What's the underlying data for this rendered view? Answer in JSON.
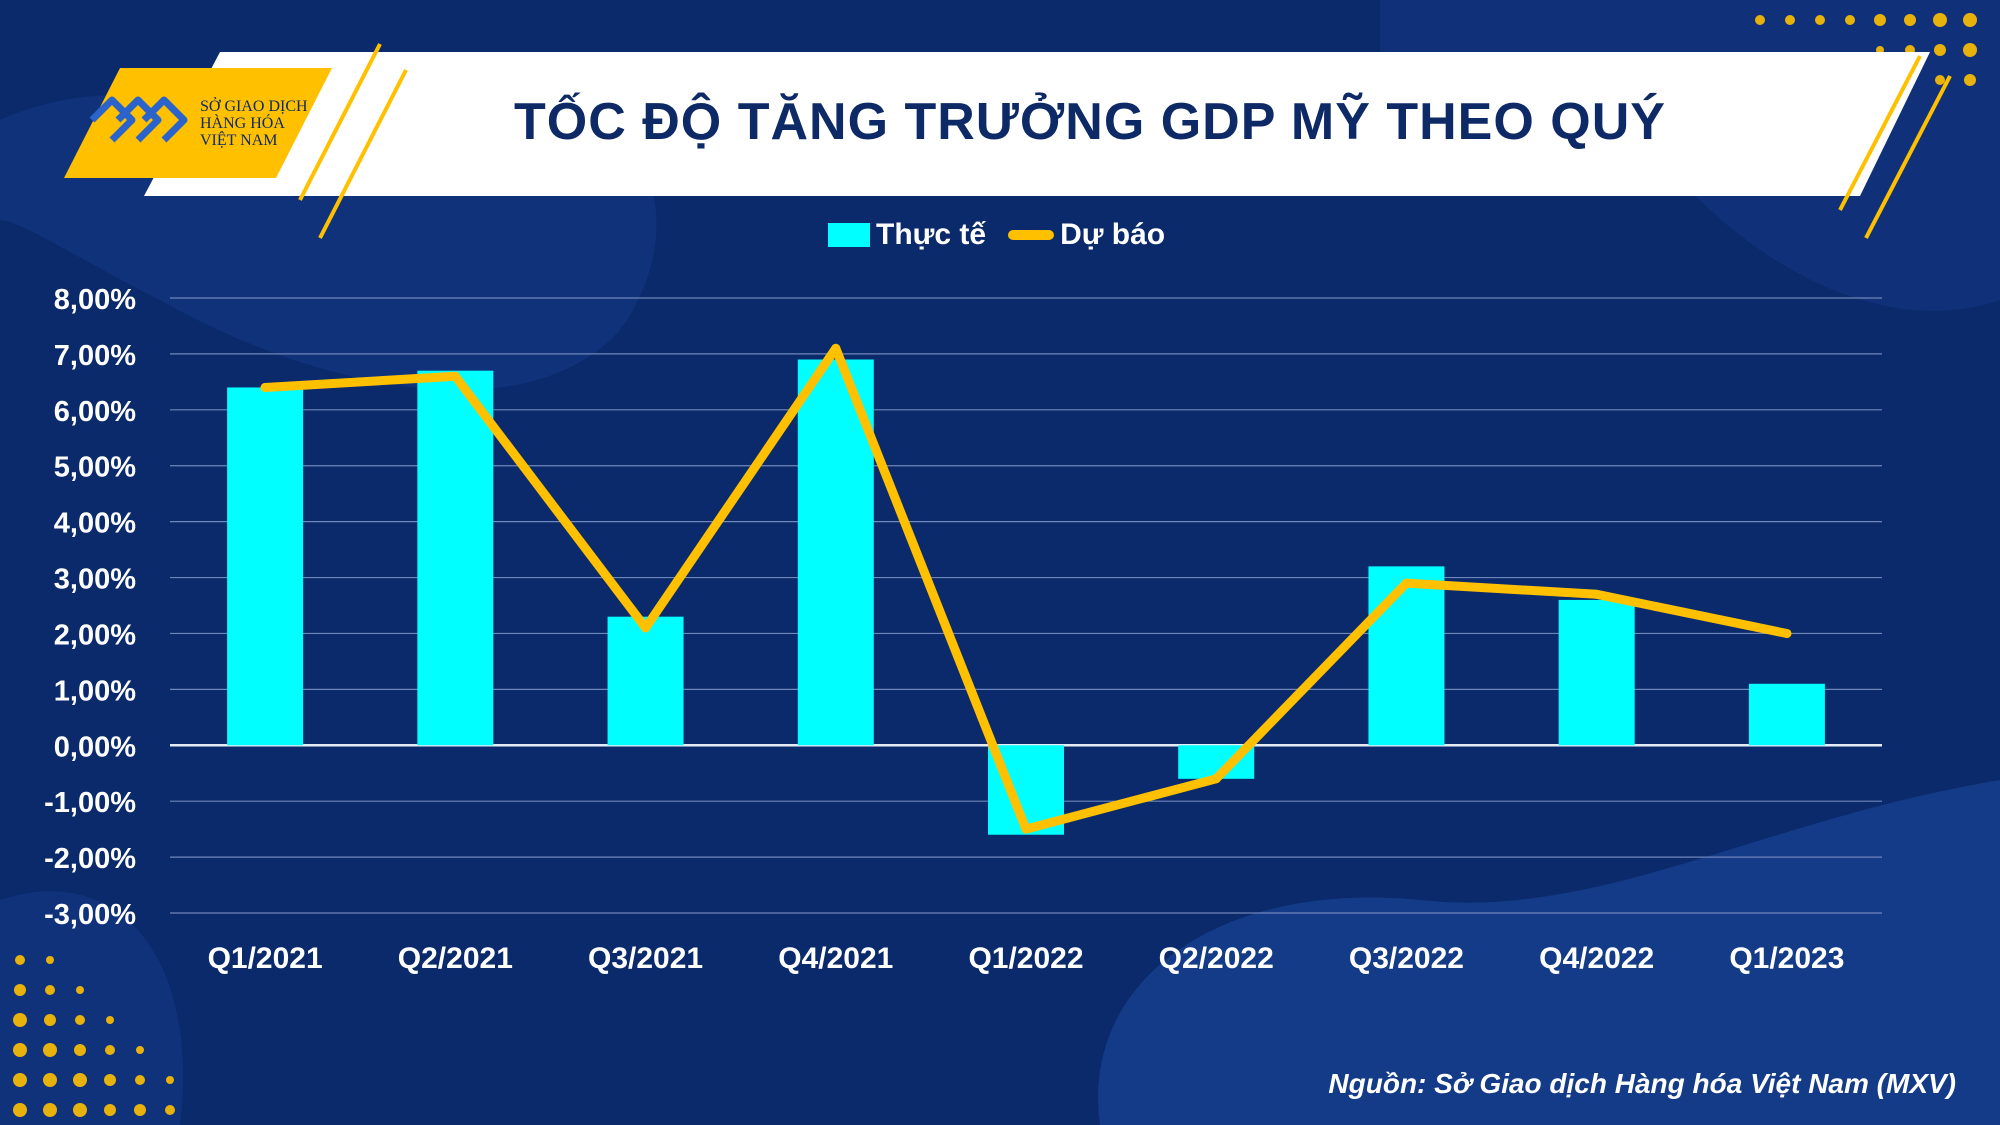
{
  "header": {
    "title": "TỐC ĐỘ TĂNG TRƯỞNG GDP MỸ THEO QUÝ",
    "logo_lines": [
      "SỞ GIAO DỊCH",
      "HÀNG HÓA",
      "VIỆT NAM"
    ]
  },
  "source": "Nguồn: Sở Giao dịch Hàng hóa Việt Nam (MXV)",
  "colors": {
    "background": "#0b2a6b",
    "bar": "#00ffff",
    "line": "#ffc000",
    "title_text": "#0d2a66"
  },
  "chart_data": {
    "type": "bar",
    "title": "TỐC ĐỘ TĂNG TRƯỞNG GDP MỸ THEO QUÝ",
    "categories": [
      "Q1/2021",
      "Q2/2021",
      "Q3/2021",
      "Q4/2021",
      "Q1/2022",
      "Q2/2022",
      "Q3/2022",
      "Q4/2022",
      "Q1/2023"
    ],
    "series": [
      {
        "name": "Thực tế",
        "type": "bar",
        "color": "#00ffff",
        "values": [
          6.4,
          6.7,
          2.3,
          6.9,
          -1.6,
          -0.6,
          3.2,
          2.6,
          1.1
        ]
      },
      {
        "name": "Dự báo",
        "type": "line",
        "color": "#ffc000",
        "values": [
          6.4,
          6.6,
          2.1,
          7.1,
          -1.5,
          -0.6,
          2.9,
          2.7,
          2.0
        ]
      }
    ],
    "ylim": [
      -3,
      8
    ],
    "yticks": [
      8,
      7,
      6,
      5,
      4,
      3,
      2,
      1,
      0,
      -1,
      -2,
      -3
    ],
    "ytick_labels": [
      "8,00%",
      "7,00%",
      "6,00%",
      "5,00%",
      "4,00%",
      "3,00%",
      "2,00%",
      "1,00%",
      "0,00%",
      "-1,00%",
      "-2,00%",
      "-3,00%"
    ],
    "grid": true,
    "legend": "top-center"
  }
}
